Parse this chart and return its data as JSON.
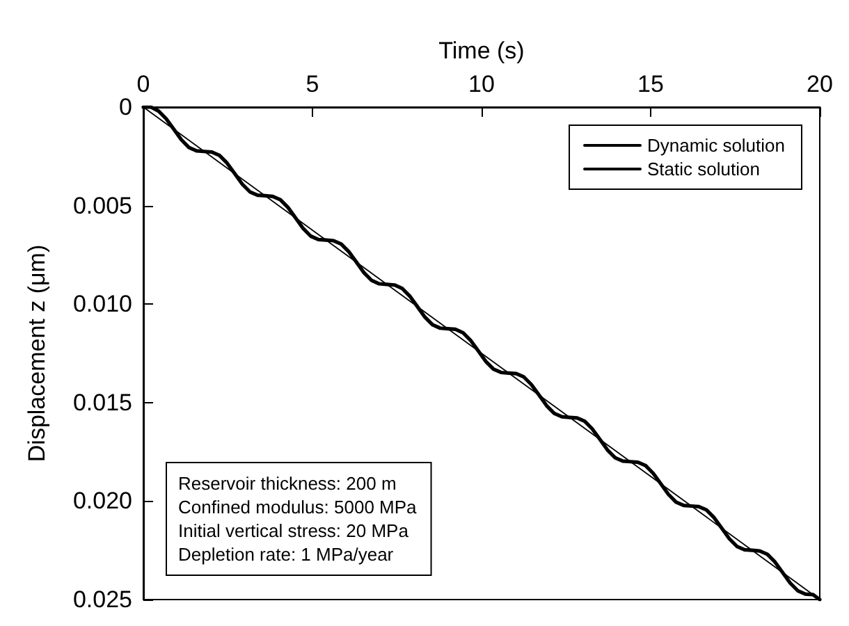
{
  "chart_data": {
    "type": "line",
    "xlabel": "Time (s)",
    "ylabel": "Displacement z (μm)",
    "xlim": [
      0,
      20
    ],
    "xticks": [
      0,
      5,
      10,
      15,
      20
    ],
    "ylim": [
      0.025,
      0
    ],
    "yticks": [
      0,
      0.005,
      {
        "value": 0.01,
        "label": "0.010"
      },
      0.015,
      {
        "value": 0.02,
        "label": "0.020"
      },
      0.025
    ],
    "series": [
      {
        "name": "Dynamic solution",
        "color": "#000000",
        "x": [
          0,
          0.225,
          0.45,
          0.675,
          0.9,
          1.125,
          1.35,
          1.575,
          1.8,
          2.025,
          2.25,
          2.475,
          2.7,
          2.925,
          3.15,
          3.375,
          3.6,
          3.825,
          4.05,
          4.275,
          4.5,
          4.725,
          4.95,
          5.175,
          5.4,
          5.625,
          5.85,
          6.075,
          6.3,
          6.525,
          6.75,
          6.975,
          7.2,
          7.425,
          7.65,
          7.875,
          8.1,
          8.325,
          8.55,
          8.775,
          9,
          9.225,
          9.45,
          9.675,
          9.9,
          10.125,
          10.35,
          10.575,
          10.8,
          11.025,
          11.25,
          11.475,
          11.7,
          11.925,
          12.15,
          12.375,
          12.6,
          12.825,
          13.05,
          13.275,
          13.5,
          13.725,
          13.95,
          14.175,
          14.4,
          14.625,
          14.85,
          15.075,
          15.3,
          15.525,
          15.75,
          15.975,
          16.2,
          16.425,
          16.65,
          16.875,
          17.1,
          17.325,
          17.55,
          17.775,
          18,
          18.225,
          18.45,
          18.675,
          18.9,
          19.125,
          19.35,
          19.575,
          19.8,
          20
        ],
        "values": [
          0,
          0,
          0.0002,
          0.00059,
          0.00112,
          0.00166,
          0.00205,
          0.00222,
          0.00225,
          0.00228,
          0.00245,
          0.00284,
          0.00337,
          0.00391,
          0.0043,
          0.00447,
          0.0045,
          0.00453,
          0.0047,
          0.00509,
          0.00562,
          0.00616,
          0.00655,
          0.00672,
          0.00675,
          0.00678,
          0.00695,
          0.00734,
          0.00787,
          0.00841,
          0.0088,
          0.00897,
          0.009,
          0.00903,
          0.0092,
          0.00959,
          0.01012,
          0.01066,
          0.01105,
          0.01122,
          0.01125,
          0.01128,
          0.01145,
          0.01184,
          0.01237,
          0.01291,
          0.0133,
          0.01347,
          0.0135,
          0.01353,
          0.0137,
          0.01409,
          0.01462,
          0.01516,
          0.01555,
          0.01572,
          0.01575,
          0.01578,
          0.01595,
          0.01634,
          0.01687,
          0.01741,
          0.0178,
          0.01797,
          0.018,
          0.01803,
          0.0182,
          0.01859,
          0.01912,
          0.01966,
          0.02005,
          0.02022,
          0.02025,
          0.02028,
          0.02045,
          0.02084,
          0.02137,
          0.02191,
          0.0223,
          0.02247,
          0.0225,
          0.02253,
          0.0227,
          0.02309,
          0.02362,
          0.02416,
          0.02455,
          0.02472,
          0.02475,
          0.025
        ]
      },
      {
        "name": "Static solution",
        "color": "#000000",
        "x": [
          0,
          20
        ],
        "values": [
          0,
          0.025
        ]
      }
    ],
    "grid": false,
    "legend": "top right",
    "marker": "none",
    "line_style": "solid",
    "annotations": [
      "Reservoir thickness: 200 m",
      "Confined modulus: 5000 MPa",
      "Initial vertical stress: 20 MPa",
      "Depletion rate: 1 MPa/year"
    ]
  }
}
